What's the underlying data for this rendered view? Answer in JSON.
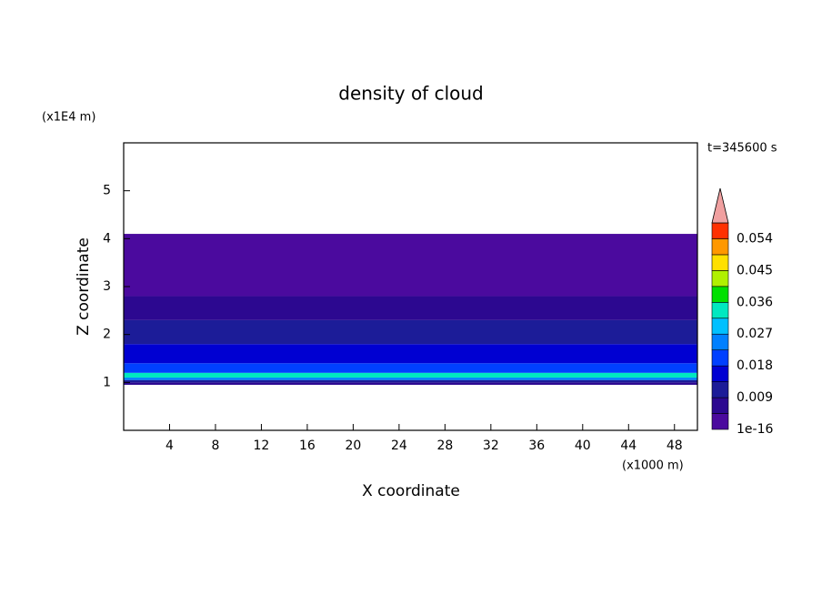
{
  "chart_data": {
    "type": "contour",
    "title": "density of cloud",
    "xlabel": "X coordinate",
    "ylabel": "Z coordinate",
    "x_unit": "(x1000 m)",
    "y_unit": "(x1E4 m)",
    "annotation": "t=345600 s",
    "xlim": [
      0,
      50
    ],
    "xticks": [
      4,
      8,
      12,
      16,
      20,
      24,
      28,
      32,
      36,
      40,
      44,
      48
    ],
    "ylim": [
      0,
      6
    ],
    "yticks": [
      1,
      2,
      3,
      4,
      5
    ],
    "field": {
      "z_edges": [
        0.95,
        1.0,
        1.05,
        1.1,
        1.2,
        1.4,
        1.8,
        2.3,
        2.8,
        4.1
      ],
      "values": [
        0.005,
        0.011,
        0.025,
        0.032,
        0.021,
        0.016,
        0.012,
        0.007,
        0.002
      ]
    },
    "colorbar": {
      "levels": [
        1e-16,
        0.0045,
        0.009,
        0.0135,
        0.018,
        0.0225,
        0.027,
        0.0315,
        0.036,
        0.0405,
        0.045,
        0.0495,
        0.054,
        0.0585
      ],
      "colors": [
        "#4b0a9e",
        "#2c0890",
        "#1c1c98",
        "#0000d2",
        "#0040ff",
        "#0080ff",
        "#00c0ff",
        "#00e8c0",
        "#00e000",
        "#b0f000",
        "#ffe000",
        "#ff9800",
        "#ff3000"
      ],
      "extend_color": "#f0a0a0",
      "ticks": [
        {
          "value": 1e-16,
          "label": "1e-16"
        },
        0.009,
        0.018,
        0.027,
        0.036,
        0.045,
        0.054
      ]
    }
  }
}
